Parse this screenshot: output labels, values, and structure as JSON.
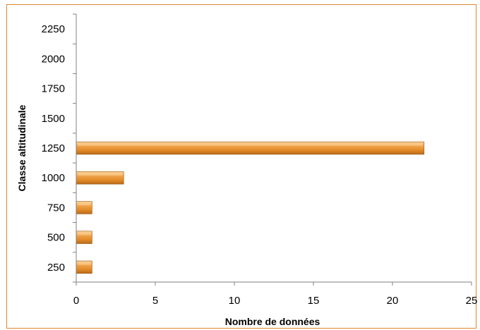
{
  "chart_data": {
    "type": "bar",
    "orientation": "horizontal",
    "title": "",
    "xlabel": "Nombre de données",
    "ylabel": "Classe altitudinale",
    "categories": [
      "250",
      "500",
      "750",
      "1000",
      "1250",
      "1500",
      "1750",
      "2000",
      "2250"
    ],
    "values": [
      1,
      1,
      1,
      3,
      22,
      0,
      0,
      0,
      0
    ],
    "xlim": [
      0,
      25
    ],
    "xticks": [
      "0",
      "5",
      "10",
      "15",
      "20",
      "25"
    ],
    "grid": false,
    "legend": "none",
    "colors": {
      "bar_fill": "#e8912f",
      "bar_highlight": "#f9c98a",
      "bar_edge": "#9a5512",
      "frame": "#e0852f",
      "axis": "#808080"
    }
  }
}
